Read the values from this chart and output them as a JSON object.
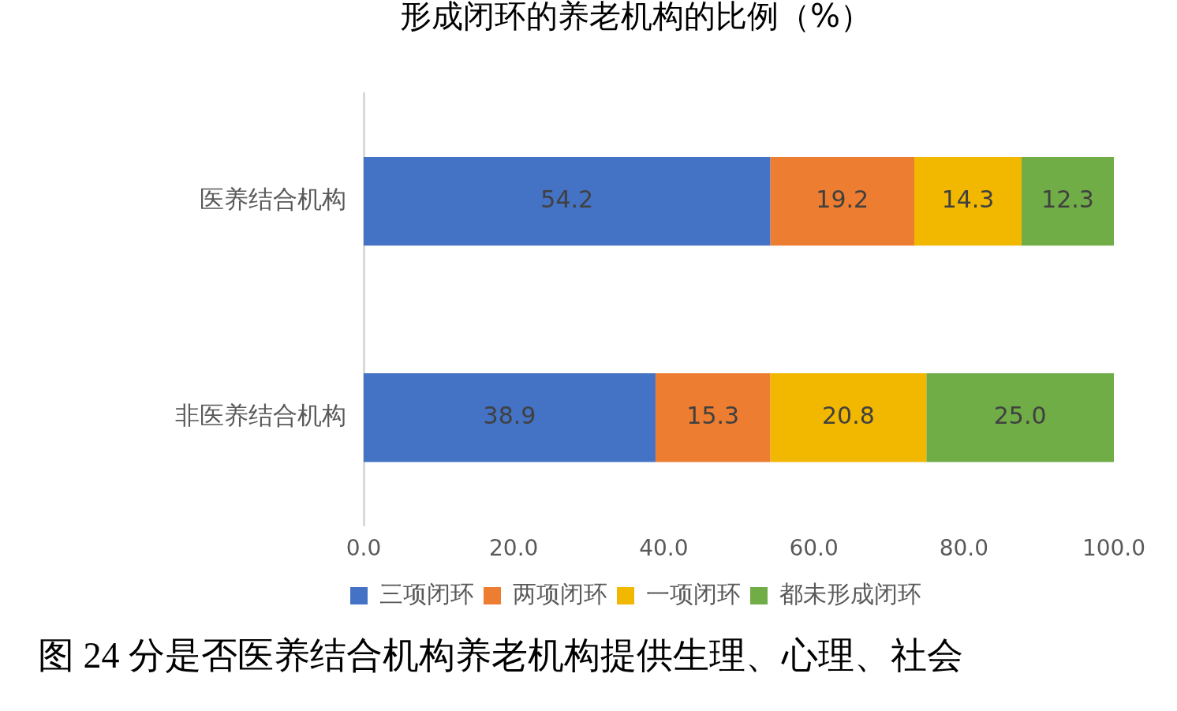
{
  "chart_data": {
    "type": "bar",
    "orientation": "horizontal",
    "stacked": true,
    "title": "形成闭环的养老机构的比例（%）",
    "categories": [
      "医养结合机构",
      "非医养结合机构"
    ],
    "series": [
      {
        "name": "三项闭环",
        "color": "#4472c4",
        "values": [
          54.2,
          38.9
        ],
        "value_labels": [
          "54.2",
          "38.9"
        ]
      },
      {
        "name": "两项闭环",
        "color": "#ed7d31",
        "values": [
          19.2,
          15.3
        ],
        "value_labels": [
          "19.2",
          "15.3"
        ]
      },
      {
        "name": "一项闭环",
        "color": "#f2b800",
        "values": [
          14.3,
          20.8
        ],
        "value_labels": [
          "14.3",
          "20.8"
        ]
      },
      {
        "name": "都未形成闭环",
        "color": "#70ad47",
        "values": [
          12.3,
          25.0
        ],
        "value_labels": [
          "12.3",
          "25.0"
        ]
      }
    ],
    "xlim": [
      0,
      100
    ],
    "xticks": [
      {
        "value": 0,
        "label": "0.0"
      },
      {
        "value": 20,
        "label": "20.0"
      },
      {
        "value": 40,
        "label": "40.0"
      },
      {
        "value": 60,
        "label": "60.0"
      },
      {
        "value": 80,
        "label": "80.0"
      },
      {
        "value": 100,
        "label": "100.0"
      }
    ],
    "grid": false,
    "legend": "bottom",
    "annotations": [
      "图 24 分是否医养结合机构养老机构提供生理、心理、社会"
    ]
  }
}
